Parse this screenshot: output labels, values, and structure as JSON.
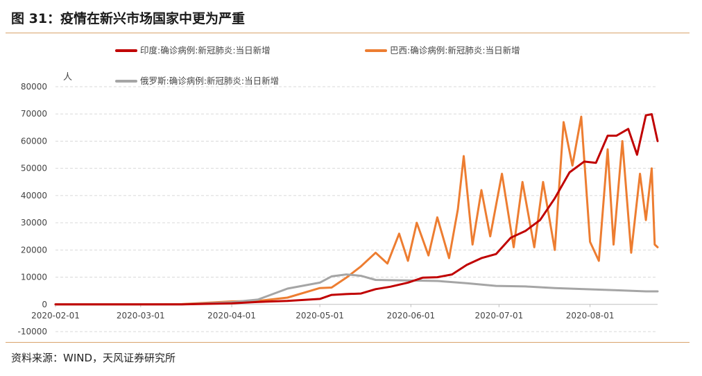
{
  "page": {
    "title": "图 31：疫情在新兴市场国家中更为严重",
    "source": "资料来源：WIND，天风证券研究所"
  },
  "chart_data": {
    "type": "line",
    "title": "图 31：疫情在新兴市场国家中更为严重",
    "ylabel": "人",
    "ylim": [
      -10000,
      80000
    ],
    "yticks": [
      -10000,
      0,
      10000,
      20000,
      30000,
      40000,
      50000,
      60000,
      70000,
      80000
    ],
    "xlim": [
      "2020-02-01",
      "2020-08-24"
    ],
    "xticks": [
      "2020-02-01",
      "2020-03-01",
      "2020-04-01",
      "2020-05-01",
      "2020-06-01",
      "2020-07-01",
      "2020-08-01"
    ],
    "grid": "horizontal-dashed",
    "legend_position": "top",
    "series": [
      {
        "name": "印度:确诊病例:新冠肺炎:当日新增",
        "color": "#c00000",
        "points": [
          [
            "2020-02-01",
            0
          ],
          [
            "2020-03-01",
            0
          ],
          [
            "2020-03-15",
            20
          ],
          [
            "2020-04-01",
            400
          ],
          [
            "2020-04-10",
            900
          ],
          [
            "2020-04-20",
            1300
          ],
          [
            "2020-05-01",
            2000
          ],
          [
            "2020-05-05",
            3500
          ],
          [
            "2020-05-10",
            3800
          ],
          [
            "2020-05-15",
            4000
          ],
          [
            "2020-05-20",
            5600
          ],
          [
            "2020-05-25",
            6500
          ],
          [
            "2020-05-31",
            8000
          ],
          [
            "2020-06-05",
            9800
          ],
          [
            "2020-06-10",
            10000
          ],
          [
            "2020-06-15",
            11000
          ],
          [
            "2020-06-20",
            14500
          ],
          [
            "2020-06-25",
            17000
          ],
          [
            "2020-06-30",
            18500
          ],
          [
            "2020-07-05",
            24500
          ],
          [
            "2020-07-10",
            27000
          ],
          [
            "2020-07-15",
            31000
          ],
          [
            "2020-07-20",
            39000
          ],
          [
            "2020-07-25",
            48500
          ],
          [
            "2020-07-30",
            52500
          ],
          [
            "2020-08-03",
            52000
          ],
          [
            "2020-08-07",
            62000
          ],
          [
            "2020-08-10",
            62000
          ],
          [
            "2020-08-14",
            64500
          ],
          [
            "2020-08-17",
            55000
          ],
          [
            "2020-08-20",
            69500
          ],
          [
            "2020-08-22",
            69900
          ],
          [
            "2020-08-24",
            60000
          ]
        ]
      },
      {
        "name": "巴西:确诊病例:新冠肺炎:当日新增",
        "color": "#ed7d31",
        "points": [
          [
            "2020-02-01",
            0
          ],
          [
            "2020-03-01",
            0
          ],
          [
            "2020-03-15",
            100
          ],
          [
            "2020-04-01",
            1100
          ],
          [
            "2020-04-10",
            1300
          ],
          [
            "2020-04-20",
            2500
          ],
          [
            "2020-05-01",
            6000
          ],
          [
            "2020-05-05",
            6200
          ],
          [
            "2020-05-10",
            9800
          ],
          [
            "2020-05-15",
            14000
          ],
          [
            "2020-05-20",
            19000
          ],
          [
            "2020-05-24",
            15000
          ],
          [
            "2020-05-28",
            26000
          ],
          [
            "2020-05-31",
            16000
          ],
          [
            "2020-06-03",
            30000
          ],
          [
            "2020-06-07",
            18000
          ],
          [
            "2020-06-10",
            32000
          ],
          [
            "2020-06-14",
            17000
          ],
          [
            "2020-06-17",
            35000
          ],
          [
            "2020-06-19",
            54500
          ],
          [
            "2020-06-22",
            22000
          ],
          [
            "2020-06-25",
            42000
          ],
          [
            "2020-06-28",
            25000
          ],
          [
            "2020-07-02",
            48000
          ],
          [
            "2020-07-06",
            21000
          ],
          [
            "2020-07-09",
            45000
          ],
          [
            "2020-07-13",
            21000
          ],
          [
            "2020-07-16",
            45000
          ],
          [
            "2020-07-20",
            20000
          ],
          [
            "2020-07-23",
            67000
          ],
          [
            "2020-07-26",
            51000
          ],
          [
            "2020-07-29",
            69000
          ],
          [
            "2020-08-01",
            23000
          ],
          [
            "2020-08-04",
            16000
          ],
          [
            "2020-08-07",
            57000
          ],
          [
            "2020-08-09",
            22000
          ],
          [
            "2020-08-12",
            60000
          ],
          [
            "2020-08-15",
            19000
          ],
          [
            "2020-08-18",
            48000
          ],
          [
            "2020-08-20",
            31000
          ],
          [
            "2020-08-22",
            50000
          ],
          [
            "2020-08-23",
            22000
          ],
          [
            "2020-08-24",
            21000
          ]
        ]
      },
      {
        "name": "俄罗斯:确诊病例:新冠肺炎:当日新增",
        "color": "#a5a5a5",
        "points": [
          [
            "2020-02-01",
            0
          ],
          [
            "2020-03-01",
            0
          ],
          [
            "2020-03-15",
            0
          ],
          [
            "2020-04-01",
            800
          ],
          [
            "2020-04-10",
            1800
          ],
          [
            "2020-04-20",
            5800
          ],
          [
            "2020-05-01",
            8000
          ],
          [
            "2020-05-05",
            10300
          ],
          [
            "2020-05-10",
            11000
          ],
          [
            "2020-05-15",
            10500
          ],
          [
            "2020-05-20",
            9000
          ],
          [
            "2020-05-25",
            8900
          ],
          [
            "2020-05-31",
            8800
          ],
          [
            "2020-06-10",
            8600
          ],
          [
            "2020-06-20",
            7800
          ],
          [
            "2020-06-30",
            6800
          ],
          [
            "2020-07-10",
            6600
          ],
          [
            "2020-07-20",
            6000
          ],
          [
            "2020-07-30",
            5600
          ],
          [
            "2020-08-10",
            5200
          ],
          [
            "2020-08-20",
            4800
          ],
          [
            "2020-08-24",
            4800
          ]
        ]
      }
    ]
  }
}
